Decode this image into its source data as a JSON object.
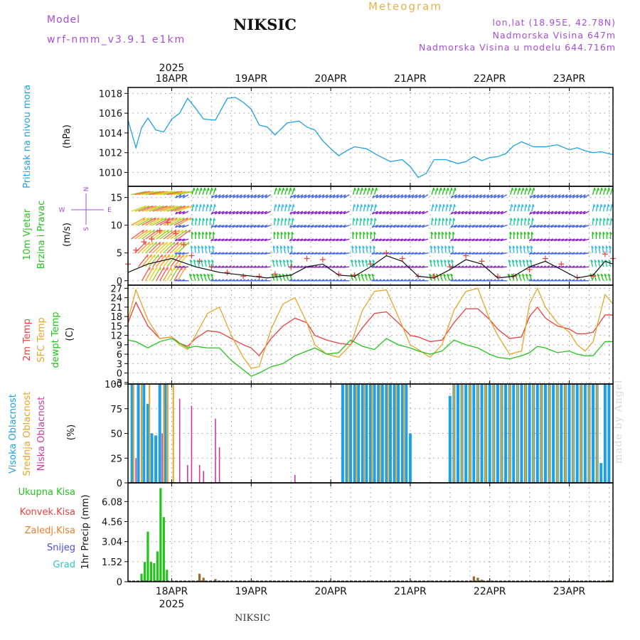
{
  "header": {
    "model_label": "Model",
    "model_version": "wrf-nmm_v3.9.1 e1km",
    "station": "NIKSIC",
    "product": "Meteogram",
    "coords": "lon,lat (18.95E, 42.78N)",
    "altitude": "Nadmorska Visina 647m",
    "model_altitude": "Nadmorska Visina u modelu 644.716m"
  },
  "footer": {
    "station": "NIKSIC",
    "credit": "made by Angel"
  },
  "colors": {
    "pressure": "#1ea0e6",
    "temp2m": "#e64040",
    "sfc": "#e6a52a",
    "dew": "#22c41a",
    "high_cloud": "#1ea0e6",
    "mid_cloud": "#e6a52a",
    "low_cloud": "#c83ca0",
    "total_precip": "#22c41a",
    "conv_precip": "#e64040",
    "freezing": "#f07b2a",
    "snow": "#4a4ae6",
    "hail": "#2ac8c8",
    "wind_label": "#22c41a",
    "gust": "#111111",
    "gust_marker": "#e64040",
    "grid": "#999999"
  },
  "x_axis": {
    "top_year": "2025",
    "bottom_year": "2025",
    "date_labels": [
      "18APR",
      "19APR",
      "20APR",
      "21APR",
      "22APR",
      "23APR"
    ],
    "range_days": [
      -0.55,
      5.55
    ]
  },
  "wind_compass": {
    "north": "N",
    "south": "S",
    "east": "E",
    "west": "W"
  },
  "chart_data": [
    {
      "type": "line",
      "panel": "pressure",
      "ylabel": [
        "Pritisak na nivou mora",
        "(hPa)"
      ],
      "ylim": [
        1008.6,
        1018.6
      ],
      "yticks": [
        1010,
        1012,
        1014,
        1016,
        1018
      ],
      "grid": true,
      "series": [
        {
          "name": "Pritisak na nivou mora",
          "x": [
            -0.55,
            -0.45,
            -0.38,
            -0.3,
            -0.2,
            -0.1,
            0,
            0.1,
            0.2,
            0.3,
            0.4,
            0.55,
            0.7,
            0.8,
            0.9,
            1.0,
            1.1,
            1.2,
            1.3,
            1.45,
            1.6,
            1.7,
            1.8,
            1.9,
            2.0,
            2.1,
            2.2,
            2.3,
            2.45,
            2.6,
            2.75,
            2.9,
            3.0,
            3.1,
            3.2,
            3.3,
            3.45,
            3.6,
            3.7,
            3.8,
            3.9,
            4.0,
            4.1,
            4.2,
            4.3,
            4.4,
            4.55,
            4.7,
            4.85,
            5.0,
            5.1,
            5.2,
            5.3,
            5.4,
            5.55
          ],
          "values": [
            1015.3,
            1012.5,
            1014.5,
            1015.5,
            1014.3,
            1014.1,
            1015.4,
            1016.0,
            1017.5,
            1016.5,
            1015.4,
            1015.3,
            1017.5,
            1017.6,
            1017.1,
            1016.4,
            1014.8,
            1014.6,
            1013.8,
            1015.0,
            1015.2,
            1014.6,
            1014.3,
            1013.2,
            1012.4,
            1011.7,
            1012.2,
            1012.6,
            1012.4,
            1011.7,
            1011.1,
            1011.3,
            1010.6,
            1009.5,
            1009.9,
            1011.3,
            1011.3,
            1010.9,
            1011.1,
            1011.6,
            1011.2,
            1011.5,
            1011.6,
            1011.9,
            1012.7,
            1013.1,
            1012.6,
            1012.6,
            1012.8,
            1012.3,
            1012.5,
            1012.2,
            1012.0,
            1012.1,
            1011.8
          ]
        }
      ]
    },
    {
      "type": "line",
      "panel": "wind",
      "ylabel": [
        "10m Vjetar",
        "Brzina i Pravac",
        "(m/s)"
      ],
      "ylim": [
        -0.8,
        17
      ],
      "yticks": [
        0,
        5,
        10,
        15
      ],
      "grid": true,
      "series": [
        {
          "name": "Udar vjetra",
          "x": [
            -0.55,
            -0.45,
            -0.35,
            -0.25,
            -0.15,
            -0.05,
            0.05,
            0.15,
            0.25,
            0.35,
            0.5,
            0.7,
            0.9,
            1.1,
            1.3,
            1.5,
            1.7,
            1.9,
            2.1,
            2.3,
            2.5,
            2.7,
            2.9,
            3.1,
            3.3,
            3.5,
            3.7,
            3.9,
            4.1,
            4.3,
            4.5,
            4.7,
            4.9,
            5.1,
            5.3,
            5.45,
            5.55
          ],
          "values": [
            3,
            5.5,
            7,
            7.5,
            9,
            10.5,
            8.5,
            6.5,
            4.5,
            3.5,
            2.5,
            1.5,
            0.8,
            0.8,
            1.2,
            2.5,
            4,
            3.8,
            1.2,
            1,
            3,
            5,
            4,
            0.8,
            0.8,
            2.5,
            4.5,
            3.5,
            0.8,
            0.8,
            2,
            4,
            3,
            0.6,
            0.8,
            4.8,
            4
          ]
        },
        {
          "name": "Srednja brzina",
          "x": [
            -0.55,
            -0.3,
            0,
            0.3,
            0.6,
            0.9,
            1.2,
            1.5,
            1.7,
            1.9,
            2.1,
            2.3,
            2.5,
            2.7,
            2.9,
            3.1,
            3.3,
            3.5,
            3.7,
            3.9,
            4.1,
            4.3,
            4.5,
            4.7,
            4.9,
            5.1,
            5.3,
            5.45,
            5.55
          ],
          "values": [
            1.5,
            3,
            4,
            2.5,
            1.5,
            1,
            0.5,
            1,
            2.5,
            3,
            1,
            0.8,
            2.5,
            4.5,
            3.5,
            0.8,
            0.5,
            2,
            3.8,
            3,
            0.5,
            0.8,
            2.5,
            3.5,
            2,
            0.5,
            1,
            3.5,
            3
          ]
        }
      ]
    },
    {
      "type": "line",
      "panel": "temperature",
      "ylabel": [
        "2m Temp",
        "SFC Temp",
        "dewpt Temp",
        "(C)"
      ],
      "ylim": [
        -3.5,
        28
      ],
      "yticks": [
        -3,
        0,
        3,
        6,
        9,
        12,
        15,
        18,
        21,
        24,
        27
      ],
      "grid": true,
      "series": [
        {
          "name": "2m Temp",
          "x": [
            -0.55,
            -0.45,
            -0.3,
            -0.15,
            0,
            0.1,
            0.2,
            0.3,
            0.45,
            0.6,
            0.75,
            0.9,
            1.0,
            1.1,
            1.25,
            1.4,
            1.55,
            1.7,
            1.8,
            1.95,
            2.1,
            2.25,
            2.4,
            2.55,
            2.7,
            2.85,
            3.0,
            3.1,
            3.25,
            3.4,
            3.55,
            3.7,
            3.85,
            4.0,
            4.1,
            4.25,
            4.4,
            4.5,
            4.6,
            4.7,
            4.85,
            5.0,
            5.1,
            5.2,
            5.3,
            5.45,
            5.55
          ],
          "values": [
            16,
            22.5,
            15,
            11,
            11.5,
            9.5,
            8.5,
            11,
            13.5,
            13,
            11,
            9,
            8,
            5.5,
            11,
            15,
            17.5,
            16,
            12,
            10.5,
            9.5,
            9,
            14.5,
            19,
            19.5,
            16,
            12,
            11.5,
            10,
            10.5,
            16,
            20.5,
            20.5,
            17,
            14,
            11,
            11.5,
            18,
            21,
            17.5,
            15,
            14,
            12.5,
            12.5,
            13,
            18.5,
            18.5
          ]
        },
        {
          "name": "SFC Temp",
          "x": [
            -0.55,
            -0.45,
            -0.3,
            -0.15,
            0,
            0.1,
            0.2,
            0.3,
            0.45,
            0.6,
            0.75,
            0.9,
            1.0,
            1.1,
            1.25,
            1.4,
            1.55,
            1.7,
            1.8,
            1.95,
            2.1,
            2.25,
            2.4,
            2.55,
            2.7,
            2.85,
            3.0,
            3.1,
            3.25,
            3.4,
            3.55,
            3.7,
            3.85,
            4.0,
            4.1,
            4.25,
            4.4,
            4.5,
            4.6,
            4.7,
            4.85,
            5.0,
            5.1,
            5.2,
            5.3,
            5.45,
            5.55
          ],
          "values": [
            17,
            26.5,
            17,
            11,
            11.5,
            9,
            7.5,
            12,
            19,
            21,
            12,
            5,
            1.5,
            2,
            14,
            22,
            24,
            16,
            9,
            6,
            5,
            9,
            20,
            26,
            26.5,
            18,
            9,
            7.5,
            5,
            9,
            20,
            26,
            27,
            17,
            12,
            6,
            7,
            22,
            27,
            21,
            16,
            13,
            9,
            7,
            10,
            25,
            22
          ]
        },
        {
          "name": "dewpt Temp",
          "x": [
            -0.55,
            -0.45,
            -0.3,
            -0.15,
            0,
            0.1,
            0.2,
            0.3,
            0.45,
            0.6,
            0.75,
            0.9,
            1.0,
            1.1,
            1.25,
            1.4,
            1.55,
            1.7,
            1.8,
            1.95,
            2.1,
            2.25,
            2.4,
            2.55,
            2.7,
            2.85,
            3.0,
            3.1,
            3.25,
            3.4,
            3.55,
            3.7,
            3.85,
            4.0,
            4.1,
            4.25,
            4.4,
            4.5,
            4.6,
            4.7,
            4.85,
            5.0,
            5.1,
            5.2,
            5.3,
            5.45,
            5.55
          ],
          "values": [
            10.5,
            10,
            8,
            10,
            11,
            9.5,
            8,
            8.5,
            8,
            8,
            4,
            1,
            -1,
            0,
            2,
            3,
            5.5,
            7,
            8,
            6,
            6.5,
            10.5,
            8.5,
            7.5,
            11,
            9,
            8,
            7,
            6,
            7,
            10.5,
            9,
            8,
            6,
            5,
            4.5,
            5.5,
            6.5,
            8.5,
            8,
            6.5,
            7,
            6,
            5.5,
            5.5,
            10,
            10
          ]
        }
      ]
    },
    {
      "type": "bar",
      "panel": "clouds",
      "ylabel": [
        "Visoka Oblacnost",
        "Srednja Oblacnost",
        "Niska Oblacnost",
        "(%)"
      ],
      "ylim": [
        0,
        100
      ],
      "yticks": [
        0,
        25,
        50,
        75,
        100
      ],
      "grid": true,
      "series": [
        {
          "name": "Visoka Oblacnost",
          "x": [
            -0.5,
            -0.42,
            -0.35,
            -0.3,
            -0.25,
            -0.2,
            -0.15,
            -0.08,
            2.15,
            2.2,
            2.25,
            2.3,
            2.35,
            2.4,
            2.45,
            2.5,
            2.55,
            2.6,
            2.65,
            2.7,
            2.75,
            2.8,
            2.85,
            2.9,
            2.95,
            3.0,
            3.5,
            3.55,
            3.6,
            3.65,
            3.7,
            3.75,
            3.8,
            3.85,
            3.9,
            3.95,
            4.0,
            4.05,
            4.1,
            4.15,
            4.2,
            4.25,
            4.3,
            4.35,
            4.4,
            4.45,
            4.5,
            4.55,
            4.6,
            4.65,
            4.7,
            4.75,
            4.8,
            4.85,
            4.9,
            4.95,
            5.0,
            5.05,
            5.1,
            5.15,
            5.2,
            5.25,
            5.3,
            5.35,
            5.4,
            5.45,
            5.5
          ],
          "values": [
            100,
            100,
            100,
            80,
            50,
            48,
            100,
            100,
            100,
            100,
            100,
            100,
            100,
            100,
            100,
            100,
            100,
            100,
            100,
            100,
            100,
            100,
            100,
            100,
            100,
            50,
            88,
            100,
            100,
            100,
            100,
            100,
            100,
            100,
            100,
            100,
            100,
            100,
            100,
            100,
            100,
            100,
            100,
            100,
            100,
            100,
            100,
            100,
            100,
            100,
            100,
            100,
            100,
            100,
            100,
            100,
            100,
            100,
            100,
            100,
            100,
            100,
            100,
            100,
            20,
            100,
            100
          ]
        },
        {
          "name": "Srednja Oblacnost",
          "x": [
            -0.48,
            -0.38,
            -0.28,
            -0.1,
            -0.05,
            0.02,
            2.22,
            2.32,
            2.42,
            2.52,
            2.62,
            2.72,
            2.82,
            2.92,
            3.55,
            3.65,
            3.75,
            3.85,
            3.95,
            4.05,
            4.15,
            4.25,
            4.35,
            4.45,
            4.55,
            4.65,
            4.75,
            4.85,
            4.95,
            5.05,
            5.15,
            5.25,
            5.35
          ],
          "values": [
            100,
            100,
            100,
            100,
            100,
            100,
            100,
            100,
            100,
            100,
            100,
            100,
            100,
            100,
            100,
            100,
            100,
            100,
            100,
            100,
            100,
            100,
            100,
            100,
            100,
            100,
            100,
            100,
            100,
            100,
            100,
            100,
            100
          ]
        },
        {
          "name": "Niska Oblacnost",
          "x": [
            -0.45,
            -0.12,
            0.1,
            0.2,
            0.25,
            0.35,
            0.4,
            0.55,
            0.6,
            1.55
          ],
          "values": [
            25,
            50,
            85,
            18,
            78,
            18,
            12,
            65,
            36,
            8
          ]
        }
      ]
    },
    {
      "type": "bar",
      "panel": "precipitation",
      "ylabel": [
        "1hr Precip (mm)"
      ],
      "legend": [
        "Ukupna Kisa",
        "Konvek.Kisa",
        "Zaledj.Kisa",
        "Snijeg",
        "Grad"
      ],
      "ylim": [
        0,
        7.5
      ],
      "yticks": [
        0,
        1.52,
        3.04,
        4.56,
        6.08
      ],
      "ytick_labels": [
        "0",
        "1.52",
        "3.04",
        "4.56",
        "6.08"
      ],
      "grid": true,
      "series": [
        {
          "name": "Ukupna Kisa",
          "x": [
            -0.38,
            -0.34,
            -0.3,
            -0.26,
            -0.22,
            -0.18,
            -0.14,
            -0.1,
            -0.06,
            -0.02
          ],
          "values": [
            0.6,
            1.5,
            3.8,
            1.5,
            1.4,
            2.3,
            7.1,
            4.9,
            0.9,
            0.0
          ]
        },
        {
          "name": "Konvek.Kisa",
          "x": [
            0.35,
            0.4,
            0.55,
            3.8,
            3.85,
            3.9,
            5.5
          ],
          "values": [
            0.6,
            0.3,
            0.2,
            0.4,
            0.3,
            0.15,
            0.1
          ]
        }
      ]
    }
  ]
}
